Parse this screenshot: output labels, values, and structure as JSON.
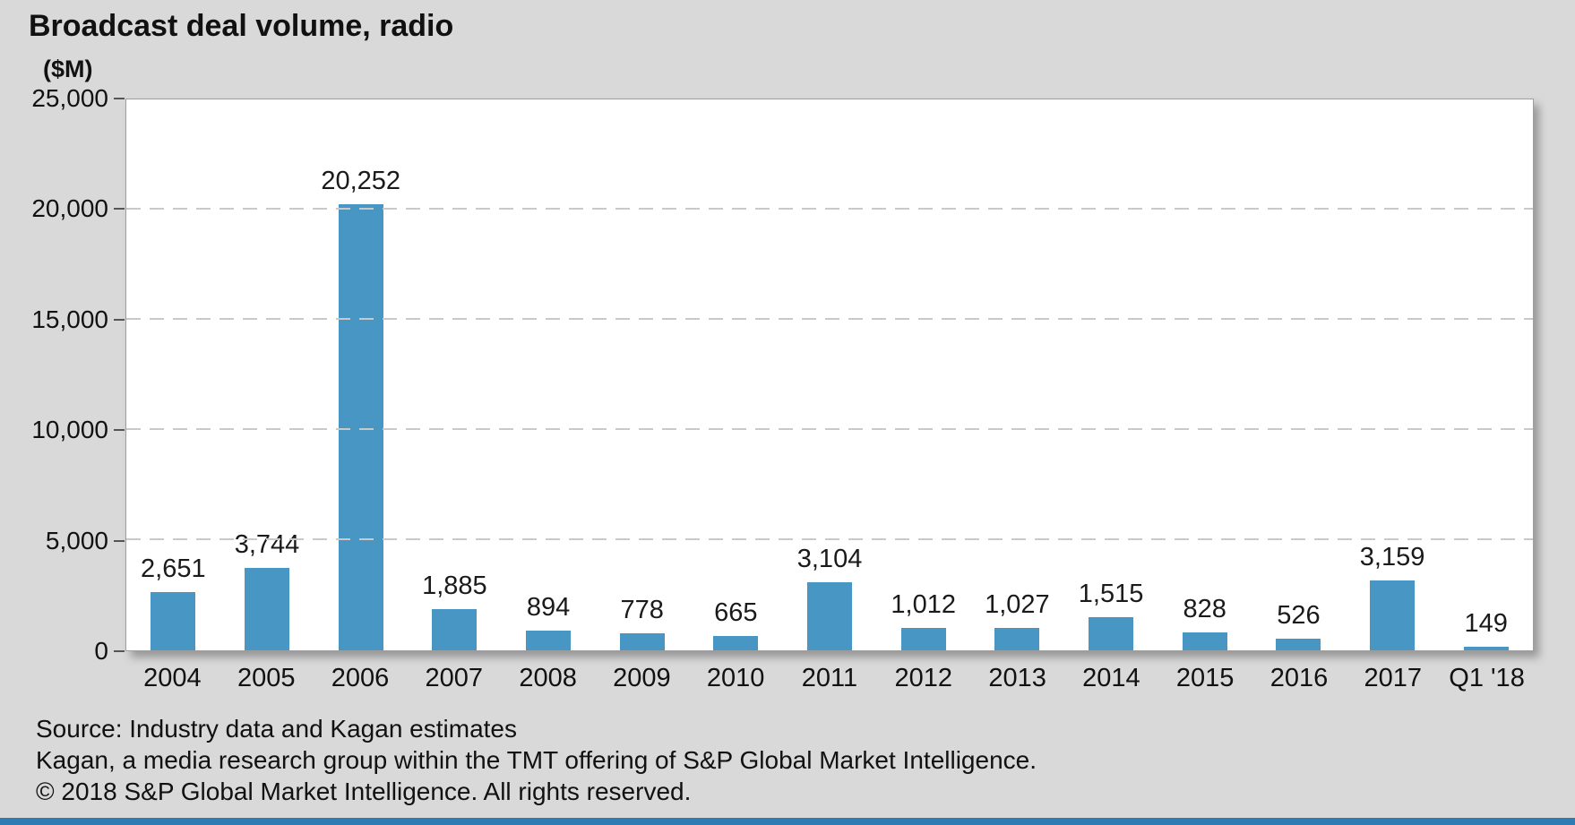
{
  "header": {
    "title": "Broadcast deal volume, radio",
    "unit_label": "($M)"
  },
  "chart_data": {
    "type": "bar",
    "title": "Broadcast deal volume, radio",
    "xlabel": "",
    "ylabel": "($M)",
    "categories": [
      "2004",
      "2005",
      "2006",
      "2007",
      "2008",
      "2009",
      "2010",
      "2011",
      "2012",
      "2013",
      "2014",
      "2015",
      "2016",
      "2017",
      "Q1 '18"
    ],
    "values": [
      2651,
      3744,
      20252,
      1885,
      894,
      778,
      665,
      3104,
      1012,
      1027,
      1515,
      828,
      526,
      3159,
      149
    ],
    "value_labels": [
      "2,651",
      "3,744",
      "20,252",
      "1,885",
      "894",
      "778",
      "665",
      "3,104",
      "1,012",
      "1,027",
      "1,515",
      "828",
      "526",
      "3,159",
      "149"
    ],
    "ylim": [
      0,
      25000
    ],
    "ytick_step": 5000,
    "yticks": [
      "0",
      "5,000",
      "10,000",
      "15,000",
      "20,000",
      "25,000"
    ],
    "grid": "horizontal dashed",
    "legend": "none",
    "bar_color": "#4796c3"
  },
  "footer": {
    "source_line": "Source: Industry data and Kagan estimates",
    "attribution_line": "Kagan, a media research group within the TMT offering of S&P Global Market Intelligence.",
    "copyright_line": "© 2018 S&P Global Market Intelligence. All rights reserved."
  },
  "colors": {
    "background": "#d9d9d9",
    "plot_background": "#ffffff",
    "bar_color": "#4796c3",
    "accent_bar": "#2d7db3",
    "gridline": "#c9c9c9",
    "text": "#111111"
  }
}
